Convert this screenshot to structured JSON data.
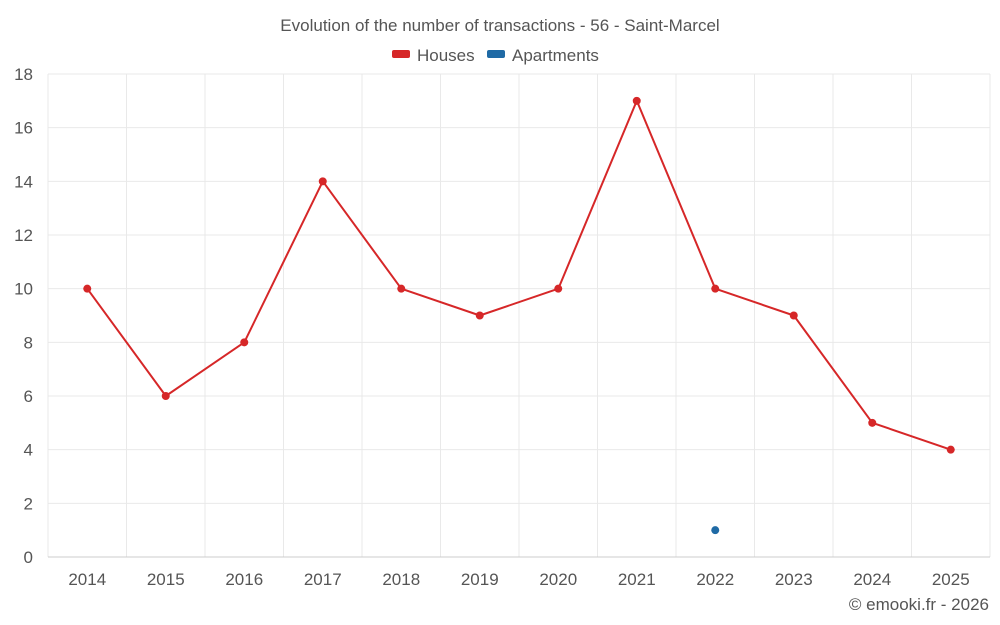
{
  "chart_data": {
    "type": "line",
    "title": "Evolution of the number of transactions - 56 - Saint-Marcel",
    "categories": [
      "2014",
      "2015",
      "2016",
      "2017",
      "2018",
      "2019",
      "2020",
      "2021",
      "2022",
      "2023",
      "2024",
      "2025"
    ],
    "series": [
      {
        "name": "Houses",
        "color": "#d62728",
        "values": [
          10,
          6,
          8,
          14,
          10,
          9,
          10,
          17,
          10,
          9,
          5,
          4
        ]
      },
      {
        "name": "Apartments",
        "color": "#1f6aa5",
        "values": [
          null,
          null,
          null,
          null,
          null,
          null,
          null,
          null,
          1,
          null,
          null,
          null
        ]
      }
    ],
    "ylim": [
      0,
      18
    ],
    "yticks": [
      0,
      2,
      4,
      6,
      8,
      10,
      12,
      14,
      16,
      18
    ],
    "xlabel": "",
    "ylabel": "",
    "grid": true,
    "legend": "top-center"
  },
  "credit": "© emooki.fr - 2026"
}
